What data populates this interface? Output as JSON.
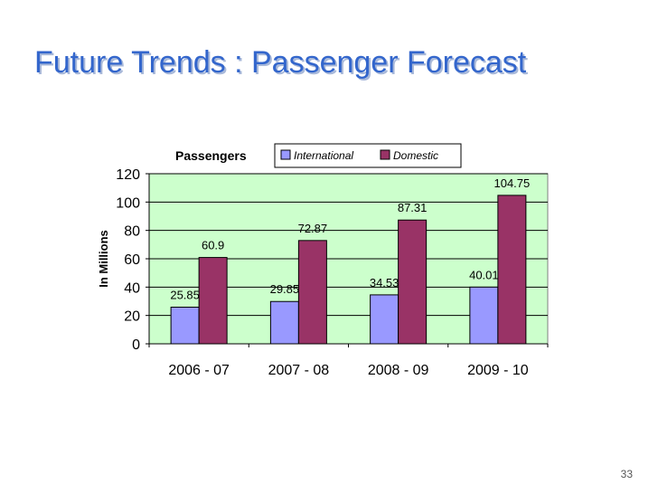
{
  "slide": {
    "title": "Future Trends : Passenger Forecast",
    "page_number": "33"
  },
  "chart_data": {
    "type": "bar",
    "title": "Passengers",
    "xlabel": "",
    "ylabel": "In Millions",
    "categories": [
      "2006 - 07",
      "2007 - 08",
      "2008 - 09",
      "2009 - 10"
    ],
    "series": [
      {
        "name": "International",
        "values": [
          25.85,
          29.85,
          34.53,
          40.01
        ],
        "labels": [
          "25.85",
          "29.85",
          "34.53",
          "40.01"
        ],
        "color": "#9999ff"
      },
      {
        "name": "Domestic",
        "values": [
          60.9,
          72.87,
          87.31,
          104.75
        ],
        "labels": [
          "60.9",
          "72.87",
          "87.31",
          "104.75"
        ],
        "color": "#993366"
      }
    ],
    "ylim": [
      0,
      120
    ],
    "yticks": [
      0,
      20,
      40,
      60,
      80,
      100,
      120
    ],
    "ytick_labels": [
      "0",
      "20",
      "40",
      "60",
      "80",
      "100",
      "120"
    ],
    "grid": true,
    "plot_background": "#ccffcc",
    "legend_placement": "top"
  }
}
